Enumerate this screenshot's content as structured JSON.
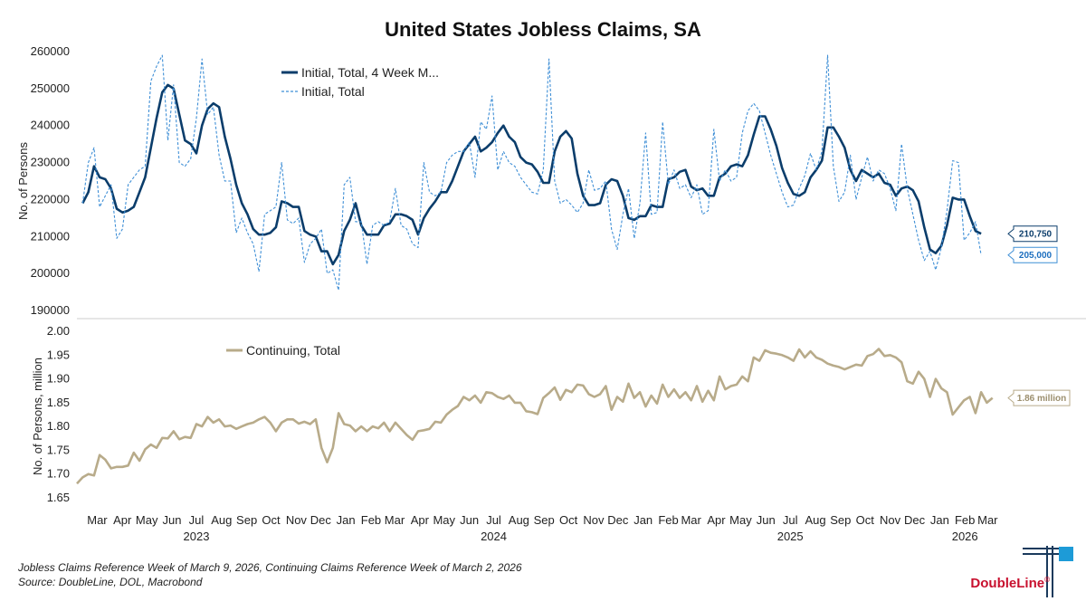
{
  "chart_data": {
    "type": "line",
    "title": "United States Jobless Claims, SA",
    "panels": [
      {
        "id": "initial",
        "ylabel": "No. of Persons",
        "ylim": [
          190000,
          260000
        ],
        "yticks": [
          190000,
          200000,
          210000,
          220000,
          230000,
          240000,
          250000,
          260000
        ],
        "legend_position": "top-left",
        "series": [
          {
            "name": "Initial, Total, 4 Week M...",
            "style": "solid",
            "color": "#0b3d6b",
            "x_start": "2023-02-11",
            "x_step_days": 7,
            "values": [
              219000,
              222000,
              229000,
              226000,
              225500,
              223000,
              217500,
              216500,
              217000,
              218000,
              222000,
              226000,
              234000,
              242000,
              249000,
              251000,
              250000,
              243000,
              236000,
              235000,
              232500,
              240000,
              244500,
              246000,
              245000,
              237000,
              231000,
              224000,
              219000,
              216000,
              212000,
              210500,
              210500,
              211000,
              212500,
              219500,
              219000,
              218000,
              218000,
              211500,
              210500,
              210000,
              206000,
              206000,
              202500,
              205000,
              211500,
              214500,
              219000,
              213000,
              210500,
              210500,
              210500,
              213000,
              213500,
              216000,
              216000,
              215500,
              214500,
              210500,
              215000,
              217500,
              219500,
              222000,
              222000,
              225000,
              229000,
              233000,
              235000,
              237000,
              233000,
              234000,
              235500,
              238000,
              240000,
              237000,
              235500,
              231500,
              230000,
              229500,
              227500,
              224500,
              224500,
              233000,
              237000,
              238500,
              236500,
              227000,
              221000,
              218500,
              218500,
              219000,
              224000,
              225500,
              225000,
              221000,
              215000,
              214500,
              215500,
              215500,
              218500,
              218000,
              218000,
              225500,
              226000,
              227500,
              228000,
              223500,
              222500,
              223000,
              221000,
              221000,
              226000,
              227000,
              229000,
              229500,
              229000,
              232000,
              237500,
              242500,
              242500,
              239000,
              234500,
              228500,
              224500,
              221500,
              221000,
              222000,
              226000,
              228000,
              230500,
              239500,
              239500,
              237000,
              234000,
              228000,
              225000,
              228000,
              227000,
              226000,
              227000,
              224500,
              224000,
              221000,
              223000,
              223500,
              222500,
              219500,
              212500,
              206500,
              205500,
              207500,
              213000,
              220500,
              220000,
              220000,
              215500,
              211500,
              210750
            ]
          },
          {
            "name": "Initial, Total",
            "style": "dashed",
            "color": "#3f8fd6",
            "x_start": "2023-02-11",
            "x_step_days": 7,
            "values": [
              219000,
              230000,
              234000,
              218000,
              221000,
              224000,
              209500,
              212000,
              224000,
              226000,
              228000,
              229000,
              252000,
              256000,
              259000,
              236000,
              251000,
              230000,
              229000,
              231000,
              242000,
              258000,
              243000,
              245000,
              232000,
              225000,
              225000,
              211000,
              215000,
              211000,
              208000,
              200500,
              216000,
              217000,
              218000,
              230000,
              214500,
              213500,
              215000,
              203000,
              208000,
              209500,
              212000,
              200000,
              201000,
              195500,
              224000,
              226000,
              214000,
              214000,
              202500,
              213000,
              214000,
              213000,
              214000,
              223000,
              213000,
              212000,
              208000,
              207000,
              230000,
              222000,
              221000,
              222000,
              230000,
              232000,
              233000,
              233000,
              235500,
              226000,
              241000,
              239000,
              248000,
              228000,
              233000,
              230000,
              229000,
              226000,
              224000,
              222000,
              221500,
              228000,
              258000,
              225000,
              219000,
              220000,
              218500,
              216500,
              219000,
              228000,
              222500,
              223000,
              225000,
              212000,
              206500,
              216000,
              223000,
              209500,
              219000,
              238000,
              216000,
              216500,
              241000,
              224000,
              228000,
              223000,
              224000,
              220500,
              224000,
              216000,
              217000,
              239000,
              225000,
              228000,
              225000,
              226000,
              238000,
              244000,
              246000,
              244000,
              238000,
              232000,
              227000,
              222000,
              218000,
              218500,
              223000,
              226500,
              232500,
              228000,
              233000,
              259000,
              229000,
              219500,
              222000,
              232000,
              220000,
              226000,
              231500,
              225000,
              228000,
              227000,
              223000,
              217000,
              235000,
              223000,
              216000,
              209000,
              203500,
              206000,
              201000,
              207000,
              217000,
              230500,
              230000,
              209000,
              211000,
              214000,
              205000
            ]
          }
        ],
        "callouts": [
          {
            "value": 210750,
            "label": "210,750",
            "series": "Initial, Total, 4 Week M..."
          },
          {
            "value": 205000,
            "label": "205,000",
            "series": "Initial, Total"
          }
        ]
      },
      {
        "id": "continuing",
        "ylabel": "No. of Persons, million",
        "ylim": [
          1.65,
          2.0
        ],
        "yticks": [
          1.65,
          1.7,
          1.75,
          1.8,
          1.85,
          1.9,
          1.95,
          2.0
        ],
        "legend_position": "top-left",
        "series": [
          {
            "name": "Continuing, Total",
            "style": "solid",
            "color": "#b8ab8a",
            "x_start": "2023-02-04",
            "x_step_days": 7,
            "values": [
              1.68,
              1.693,
              1.7,
              1.697,
              1.74,
              1.73,
              1.712,
              1.715,
              1.715,
              1.718,
              1.745,
              1.728,
              1.752,
              1.762,
              1.755,
              1.776,
              1.775,
              1.79,
              1.773,
              1.778,
              1.776,
              1.805,
              1.8,
              1.82,
              1.808,
              1.815,
              1.8,
              1.802,
              1.795,
              1.8,
              1.805,
              1.808,
              1.815,
              1.82,
              1.808,
              1.79,
              1.808,
              1.815,
              1.815,
              1.806,
              1.81,
              1.805,
              1.815,
              1.755,
              1.725,
              1.755,
              1.828,
              1.805,
              1.802,
              1.79,
              1.8,
              1.79,
              1.8,
              1.796,
              1.808,
              1.79,
              1.808,
              1.795,
              1.782,
              1.772,
              1.79,
              1.792,
              1.795,
              1.81,
              1.808,
              1.825,
              1.835,
              1.843,
              1.862,
              1.855,
              1.865,
              1.85,
              1.872,
              1.87,
              1.862,
              1.858,
              1.865,
              1.85,
              1.85,
              1.832,
              1.83,
              1.826,
              1.86,
              1.87,
              1.882,
              1.856,
              1.877,
              1.872,
              1.888,
              1.886,
              1.868,
              1.862,
              1.868,
              1.885,
              1.835,
              1.862,
              1.852,
              1.89,
              1.86,
              1.872,
              1.842,
              1.865,
              1.848,
              1.888,
              1.862,
              1.878,
              1.86,
              1.872,
              1.855,
              1.885,
              1.852,
              1.875,
              1.855,
              1.905,
              1.878,
              1.885,
              1.888,
              1.905,
              1.895,
              1.945,
              1.938,
              1.96,
              1.955,
              1.953,
              1.95,
              1.945,
              1.938,
              1.962,
              1.945,
              1.958,
              1.945,
              1.94,
              1.932,
              1.928,
              1.925,
              1.92,
              1.925,
              1.93,
              1.928,
              1.948,
              1.952,
              1.963,
              1.948,
              1.95,
              1.945,
              1.935,
              1.895,
              1.89,
              1.915,
              1.9,
              1.862,
              1.9,
              1.88,
              1.872,
              1.825,
              1.84,
              1.855,
              1.862,
              1.828,
              1.872,
              1.85,
              1.86
            ]
          }
        ],
        "callouts": [
          {
            "value": 1.86,
            "label": "1.86 million",
            "series": "Continuing, Total"
          }
        ]
      }
    ],
    "x_axis": {
      "type": "date",
      "range": [
        "2023-02-04",
        "2026-03-14"
      ],
      "month_ticks": [
        {
          "label": "Mar",
          "date": "2023-03-01"
        },
        {
          "label": "Apr",
          "date": "2023-04-01"
        },
        {
          "label": "May",
          "date": "2023-05-01"
        },
        {
          "label": "Jun",
          "date": "2023-06-01"
        },
        {
          "label": "Jul",
          "date": "2023-07-01"
        },
        {
          "label": "Aug",
          "date": "2023-08-01"
        },
        {
          "label": "Sep",
          "date": "2023-09-01"
        },
        {
          "label": "Oct",
          "date": "2023-10-01"
        },
        {
          "label": "Nov",
          "date": "2023-11-01"
        },
        {
          "label": "Dec",
          "date": "2023-12-01"
        },
        {
          "label": "Jan",
          "date": "2024-01-01"
        },
        {
          "label": "Feb",
          "date": "2024-02-01"
        },
        {
          "label": "Mar",
          "date": "2024-03-01"
        },
        {
          "label": "Apr",
          "date": "2024-04-01"
        },
        {
          "label": "May",
          "date": "2024-05-01"
        },
        {
          "label": "Jun",
          "date": "2024-06-01"
        },
        {
          "label": "Jul",
          "date": "2024-07-01"
        },
        {
          "label": "Aug",
          "date": "2024-08-01"
        },
        {
          "label": "Sep",
          "date": "2024-09-01"
        },
        {
          "label": "Oct",
          "date": "2024-10-01"
        },
        {
          "label": "Nov",
          "date": "2024-11-01"
        },
        {
          "label": "Dec",
          "date": "2024-12-01"
        },
        {
          "label": "Jan",
          "date": "2025-01-01"
        },
        {
          "label": "Feb",
          "date": "2025-02-01"
        },
        {
          "label": "Mar",
          "date": "2025-03-01"
        },
        {
          "label": "Apr",
          "date": "2025-04-01"
        },
        {
          "label": "May",
          "date": "2025-05-01"
        },
        {
          "label": "Jun",
          "date": "2025-06-01"
        },
        {
          "label": "Jul",
          "date": "2025-07-01"
        },
        {
          "label": "Aug",
          "date": "2025-08-01"
        },
        {
          "label": "Sep",
          "date": "2025-09-01"
        },
        {
          "label": "Oct",
          "date": "2025-10-01"
        },
        {
          "label": "Nov",
          "date": "2025-11-01"
        },
        {
          "label": "Dec",
          "date": "2025-12-01"
        },
        {
          "label": "Jan",
          "date": "2026-01-01"
        },
        {
          "label": "Feb",
          "date": "2026-02-01"
        },
        {
          "label": "Mar",
          "date": "2026-03-01"
        }
      ],
      "year_labels": [
        {
          "label": "2023",
          "date": "2023-07-01"
        },
        {
          "label": "2024",
          "date": "2024-07-01"
        },
        {
          "label": "2025",
          "date": "2025-07-01"
        },
        {
          "label": "2026",
          "date": "2026-02-01"
        }
      ]
    },
    "grid": false
  },
  "footnotes": {
    "reference": "Jobless Claims Reference Week of March 9, 2026, Continuing Claims Reference Week of March 2, 2026",
    "source": "Source: DoubleLine, DOL, Macrobond"
  },
  "brand": {
    "name": "DoubleLine",
    "reg": "®",
    "logo_colors": [
      "#1a3a5c",
      "#1d9bd7"
    ]
  }
}
